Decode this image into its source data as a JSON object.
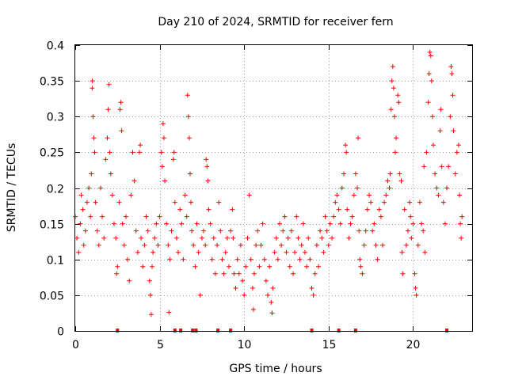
{
  "chart_data": {
    "type": "scatter",
    "title": "Day 210 of 2024, SRMTID for receiver fern",
    "xlabel": "GPS time / hours",
    "ylabel": "SRMTID / TECUs",
    "xlim": [
      0,
      23.5
    ],
    "ylim": [
      0,
      0.4
    ],
    "xticks": [
      0,
      5,
      10,
      15,
      20
    ],
    "xtick_labels": [
      "0",
      "5",
      "10",
      "15",
      "20"
    ],
    "yticks": [
      0,
      0.05,
      0.1,
      0.15,
      0.2,
      0.25,
      0.3,
      0.35,
      0.4
    ],
    "ytick_labels": [
      "0",
      "0.05",
      "0.1",
      "0.15",
      "0.2",
      "0.25",
      "0.3",
      "0.35",
      "0.4"
    ],
    "grid": true,
    "marker": "+",
    "color": "#ff0000",
    "series": [
      {
        "name": "SRMTID",
        "points": [
          [
            0.0,
            0.16
          ],
          [
            0.1,
            0.13
          ],
          [
            0.2,
            0.11
          ],
          [
            0.3,
            0.15
          ],
          [
            0.35,
            0.19
          ],
          [
            0.45,
            0.17
          ],
          [
            0.5,
            0.12
          ],
          [
            0.6,
            0.14
          ],
          [
            0.7,
            0.18
          ],
          [
            0.8,
            0.2
          ],
          [
            0.9,
            0.16
          ],
          [
            0.95,
            0.22
          ],
          [
            1.0,
            0.34
          ],
          [
            1.02,
            0.35
          ],
          [
            1.05,
            0.3
          ],
          [
            1.1,
            0.27
          ],
          [
            1.15,
            0.25
          ],
          [
            1.2,
            0.18
          ],
          [
            1.3,
            0.14
          ],
          [
            1.4,
            0.12
          ],
          [
            1.5,
            0.2
          ],
          [
            1.6,
            0.16
          ],
          [
            1.7,
            0.13
          ],
          [
            1.8,
            0.24
          ],
          [
            1.9,
            0.27
          ],
          [
            1.95,
            0.31
          ],
          [
            2.0,
            0.345
          ],
          [
            2.05,
            0.25
          ],
          [
            2.1,
            0.22
          ],
          [
            2.2,
            0.19
          ],
          [
            2.3,
            0.15
          ],
          [
            2.4,
            0.13
          ],
          [
            2.45,
            0.08
          ],
          [
            2.5,
            0.09
          ],
          [
            2.6,
            0.18
          ],
          [
            2.65,
            0.31
          ],
          [
            2.7,
            0.32
          ],
          [
            2.75,
            0.28
          ],
          [
            2.8,
            0.15
          ],
          [
            2.9,
            0.12
          ],
          [
            3.0,
            0.16
          ],
          [
            3.1,
            0.1
          ],
          [
            3.2,
            0.07
          ],
          [
            3.3,
            0.19
          ],
          [
            3.4,
            0.25
          ],
          [
            3.5,
            0.21
          ],
          [
            3.6,
            0.14
          ],
          [
            3.7,
            0.11
          ],
          [
            3.8,
            0.25
          ],
          [
            3.85,
            0.26
          ],
          [
            3.9,
            0.13
          ],
          [
            4.0,
            0.09
          ],
          [
            4.1,
            0.12
          ],
          [
            4.2,
            0.16
          ],
          [
            4.3,
            0.14
          ],
          [
            4.4,
            0.07
          ],
          [
            4.45,
            0.05
          ],
          [
            4.5,
            0.023
          ],
          [
            4.55,
            0.09
          ],
          [
            4.6,
            0.11
          ],
          [
            4.7,
            0.13
          ],
          [
            4.8,
            0.15
          ],
          [
            4.9,
            0.12
          ],
          [
            5.0,
            0.16
          ],
          [
            5.1,
            0.25
          ],
          [
            5.15,
            0.23
          ],
          [
            5.2,
            0.29
          ],
          [
            5.25,
            0.27
          ],
          [
            5.3,
            0.21
          ],
          [
            5.4,
            0.15
          ],
          [
            5.5,
            0.12
          ],
          [
            5.55,
            0.026
          ],
          [
            5.6,
            0.1
          ],
          [
            5.7,
            0.14
          ],
          [
            5.8,
            0.24
          ],
          [
            5.85,
            0.25
          ],
          [
            5.9,
            0.18
          ],
          [
            6.0,
            0.13
          ],
          [
            6.1,
            0.11
          ],
          [
            6.2,
            0.17
          ],
          [
            6.3,
            0.15
          ],
          [
            6.4,
            0.1
          ],
          [
            6.5,
            0.19
          ],
          [
            6.6,
            0.16
          ],
          [
            6.65,
            0.33
          ],
          [
            6.7,
            0.3
          ],
          [
            6.75,
            0.27
          ],
          [
            6.8,
            0.22
          ],
          [
            6.85,
            0.18
          ],
          [
            6.9,
            0.14
          ],
          [
            7.0,
            0.12
          ],
          [
            7.1,
            0.09
          ],
          [
            7.2,
            0.15
          ],
          [
            7.3,
            0.11
          ],
          [
            7.4,
            0.05
          ],
          [
            7.5,
            0.13
          ],
          [
            7.6,
            0.14
          ],
          [
            7.7,
            0.12
          ],
          [
            7.75,
            0.24
          ],
          [
            7.8,
            0.23
          ],
          [
            7.85,
            0.21
          ],
          [
            7.9,
            0.17
          ],
          [
            8.0,
            0.15
          ],
          [
            8.1,
            0.1
          ],
          [
            8.2,
            0.13
          ],
          [
            8.3,
            0.08
          ],
          [
            8.4,
            0.12
          ],
          [
            8.5,
            0.18
          ],
          [
            8.6,
            0.14
          ],
          [
            8.7,
            0.1
          ],
          [
            8.8,
            0.08
          ],
          [
            8.9,
            0.11
          ],
          [
            9.0,
            0.13
          ],
          [
            9.1,
            0.09
          ],
          [
            9.2,
            0.14
          ],
          [
            9.3,
            0.17
          ],
          [
            9.35,
            0.13
          ],
          [
            9.4,
            0.08
          ],
          [
            9.5,
            0.06
          ],
          [
            9.6,
            0.1
          ],
          [
            9.7,
            0.08
          ],
          [
            9.8,
            0.12
          ],
          [
            9.9,
            0.07
          ],
          [
            10.0,
            0.05
          ],
          [
            10.1,
            0.09
          ],
          [
            10.2,
            0.13
          ],
          [
            10.3,
            0.19
          ],
          [
            10.4,
            0.1
          ],
          [
            10.5,
            0.06
          ],
          [
            10.55,
            0.03
          ],
          [
            10.6,
            0.08
          ],
          [
            10.7,
            0.12
          ],
          [
            10.8,
            0.14
          ],
          [
            10.9,
            0.09
          ],
          [
            11.0,
            0.12
          ],
          [
            11.1,
            0.15
          ],
          [
            11.2,
            0.1
          ],
          [
            11.3,
            0.07
          ],
          [
            11.4,
            0.05
          ],
          [
            11.5,
            0.09
          ],
          [
            11.6,
            0.04
          ],
          [
            11.65,
            0.025
          ],
          [
            11.7,
            0.06
          ],
          [
            11.8,
            0.11
          ],
          [
            11.9,
            0.13
          ],
          [
            12.0,
            0.1
          ],
          [
            12.1,
            0.15
          ],
          [
            12.2,
            0.12
          ],
          [
            12.3,
            0.14
          ],
          [
            12.4,
            0.16
          ],
          [
            12.5,
            0.11
          ],
          [
            12.6,
            0.13
          ],
          [
            12.7,
            0.09
          ],
          [
            12.8,
            0.14
          ],
          [
            12.9,
            0.08
          ],
          [
            13.0,
            0.11
          ],
          [
            13.1,
            0.16
          ],
          [
            13.2,
            0.13
          ],
          [
            13.3,
            0.1
          ],
          [
            13.4,
            0.12
          ],
          [
            13.5,
            0.15
          ],
          [
            13.6,
            0.11
          ],
          [
            13.7,
            0.09
          ],
          [
            13.8,
            0.13
          ],
          [
            13.9,
            0.1
          ],
          [
            14.0,
            0.06
          ],
          [
            14.1,
            0.05
          ],
          [
            14.2,
            0.08
          ],
          [
            14.3,
            0.12
          ],
          [
            14.4,
            0.09
          ],
          [
            14.5,
            0.14
          ],
          [
            14.6,
            0.13
          ],
          [
            14.7,
            0.11
          ],
          [
            14.8,
            0.16
          ],
          [
            14.9,
            0.14
          ],
          [
            15.0,
            0.12
          ],
          [
            15.1,
            0.15
          ],
          [
            15.2,
            0.13
          ],
          [
            15.3,
            0.16
          ],
          [
            15.4,
            0.18
          ],
          [
            15.5,
            0.19
          ],
          [
            15.6,
            0.17
          ],
          [
            15.7,
            0.15
          ],
          [
            15.8,
            0.2
          ],
          [
            15.9,
            0.22
          ],
          [
            16.0,
            0.26
          ],
          [
            16.05,
            0.25
          ],
          [
            16.1,
            0.17
          ],
          [
            16.2,
            0.13
          ],
          [
            16.3,
            0.15
          ],
          [
            16.4,
            0.16
          ],
          [
            16.5,
            0.19
          ],
          [
            16.6,
            0.22
          ],
          [
            16.7,
            0.2
          ],
          [
            16.75,
            0.27
          ],
          [
            16.8,
            0.14
          ],
          [
            16.85,
            0.1
          ],
          [
            16.9,
            0.09
          ],
          [
            17.0,
            0.08
          ],
          [
            17.1,
            0.12
          ],
          [
            17.2,
            0.14
          ],
          [
            17.3,
            0.17
          ],
          [
            17.4,
            0.19
          ],
          [
            17.5,
            0.18
          ],
          [
            17.6,
            0.14
          ],
          [
            17.7,
            0.15
          ],
          [
            17.8,
            0.12
          ],
          [
            17.9,
            0.1
          ],
          [
            18.0,
            0.17
          ],
          [
            18.1,
            0.16
          ],
          [
            18.2,
            0.12
          ],
          [
            18.3,
            0.18
          ],
          [
            18.4,
            0.19
          ],
          [
            18.5,
            0.21
          ],
          [
            18.6,
            0.2
          ],
          [
            18.65,
            0.22
          ],
          [
            18.7,
            0.31
          ],
          [
            18.75,
            0.35
          ],
          [
            18.8,
            0.37
          ],
          [
            18.85,
            0.34
          ],
          [
            18.9,
            0.3
          ],
          [
            18.95,
            0.25
          ],
          [
            19.0,
            0.27
          ],
          [
            19.1,
            0.33
          ],
          [
            19.15,
            0.32
          ],
          [
            19.2,
            0.22
          ],
          [
            19.3,
            0.21
          ],
          [
            19.35,
            0.11
          ],
          [
            19.4,
            0.08
          ],
          [
            19.5,
            0.17
          ],
          [
            19.6,
            0.12
          ],
          [
            19.7,
            0.14
          ],
          [
            19.8,
            0.18
          ],
          [
            19.85,
            0.16
          ],
          [
            19.9,
            0.13
          ],
          [
            20.0,
            0.15
          ],
          [
            20.1,
            0.08
          ],
          [
            20.15,
            0.06
          ],
          [
            20.2,
            0.05
          ],
          [
            20.3,
            0.12
          ],
          [
            20.4,
            0.18
          ],
          [
            20.5,
            0.15
          ],
          [
            20.6,
            0.14
          ],
          [
            20.65,
            0.23
          ],
          [
            20.7,
            0.11
          ],
          [
            20.8,
            0.25
          ],
          [
            20.9,
            0.32
          ],
          [
            20.95,
            0.36
          ],
          [
            21.0,
            0.39
          ],
          [
            21.05,
            0.385
          ],
          [
            21.1,
            0.35
          ],
          [
            21.15,
            0.3
          ],
          [
            21.2,
            0.26
          ],
          [
            21.3,
            0.22
          ],
          [
            21.4,
            0.2
          ],
          [
            21.5,
            0.19
          ],
          [
            21.6,
            0.28
          ],
          [
            21.65,
            0.31
          ],
          [
            21.7,
            0.23
          ],
          [
            21.8,
            0.18
          ],
          [
            21.9,
            0.15
          ],
          [
            22.0,
            0.2
          ],
          [
            22.1,
            0.23
          ],
          [
            22.2,
            0.3
          ],
          [
            22.25,
            0.37
          ],
          [
            22.3,
            0.36
          ],
          [
            22.35,
            0.33
          ],
          [
            22.4,
            0.28
          ],
          [
            22.5,
            0.22
          ],
          [
            22.6,
            0.25
          ],
          [
            22.7,
            0.26
          ],
          [
            22.75,
            0.19
          ],
          [
            22.8,
            0.15
          ],
          [
            22.85,
            0.13
          ],
          [
            22.9,
            0.16
          ]
        ]
      }
    ],
    "axis_markers": [
      2.5,
      5.9,
      6.25,
      6.95,
      7.15,
      8.45,
      9.2,
      14.0,
      15.6,
      16.6,
      22.0
    ]
  }
}
